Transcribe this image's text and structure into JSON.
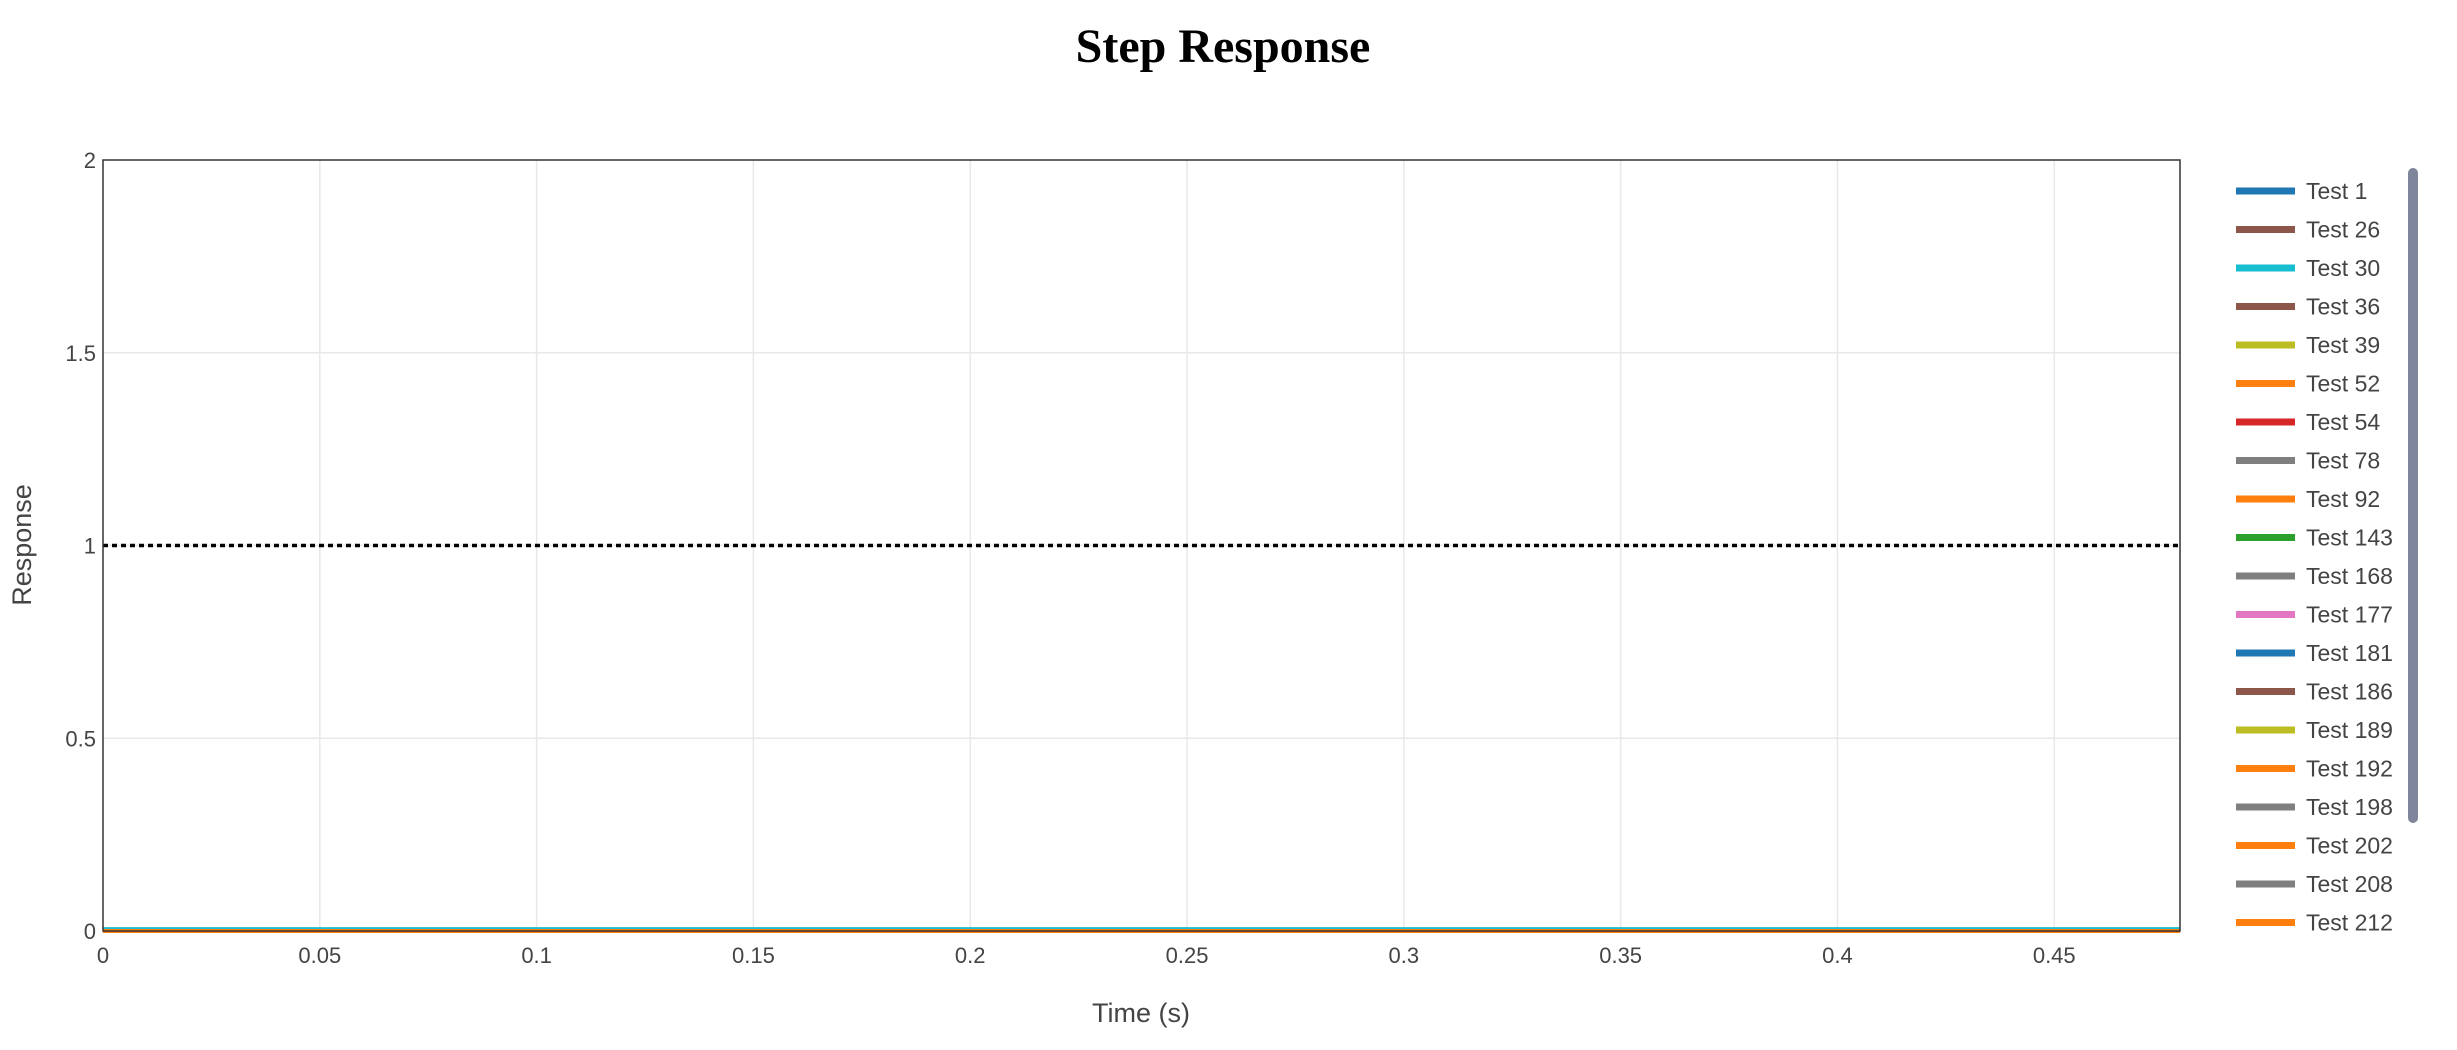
{
  "chart_data": {
    "type": "line",
    "title": "Step Response",
    "xlabel": "Time (s)",
    "ylabel": "Response",
    "xlim": [
      0,
      0.479
    ],
    "ylim": [
      0,
      2
    ],
    "x_ticks": [
      0,
      0.05,
      0.1,
      0.15,
      0.2,
      0.25,
      0.3,
      0.35,
      0.4,
      0.45
    ],
    "x_tick_labels": [
      "0",
      "0.05",
      "0.1",
      "0.15",
      "0.2",
      "0.25",
      "0.3",
      "0.35",
      "0.4",
      "0.45"
    ],
    "y_ticks": [
      0,
      0.5,
      1,
      1.5,
      2
    ],
    "y_tick_labels": [
      "0",
      "0.5",
      "1",
      "1.5",
      "2"
    ],
    "grid": true,
    "legend_position": "right",
    "reference_line": {
      "y": 1,
      "style": "dotted",
      "color": "#000000"
    },
    "series": [
      {
        "name": "Test 1",
        "color": "#1f77b4",
        "x": [
          0,
          0.479
        ],
        "y": [
          0,
          0
        ]
      },
      {
        "name": "Test 26",
        "color": "#8c564b",
        "x": [
          0,
          0.479
        ],
        "y": [
          0,
          0
        ]
      },
      {
        "name": "Test 30",
        "color": "#17becf",
        "x": [
          0,
          0.479
        ],
        "y": [
          0.005,
          0.005
        ]
      },
      {
        "name": "Test 36",
        "color": "#8c564b",
        "x": [
          0,
          0.479
        ],
        "y": [
          0,
          0
        ]
      },
      {
        "name": "Test 39",
        "color": "#bcbd22",
        "x": [
          0,
          0.479
        ],
        "y": [
          0,
          0
        ]
      },
      {
        "name": "Test 52",
        "color": "#ff7f0e",
        "x": [
          0,
          0.479
        ],
        "y": [
          0,
          0
        ]
      },
      {
        "name": "Test 54",
        "color": "#d62728",
        "x": [
          0,
          0.479
        ],
        "y": [
          0,
          0
        ]
      },
      {
        "name": "Test 78",
        "color": "#7f7f7f",
        "x": [
          0,
          0.479
        ],
        "y": [
          0,
          0
        ]
      },
      {
        "name": "Test 92",
        "color": "#ff7f0e",
        "x": [
          0,
          0.479
        ],
        "y": [
          0,
          0
        ]
      },
      {
        "name": "Test 143",
        "color": "#2ca02c",
        "x": [
          0,
          0.479
        ],
        "y": [
          0,
          0
        ]
      },
      {
        "name": "Test 168",
        "color": "#7f7f7f",
        "x": [
          0,
          0.479
        ],
        "y": [
          0,
          0
        ]
      },
      {
        "name": "Test 177",
        "color": "#e377c2",
        "x": [
          0,
          0.479
        ],
        "y": [
          0,
          0
        ]
      },
      {
        "name": "Test 181",
        "color": "#1f77b4",
        "x": [
          0,
          0.479
        ],
        "y": [
          0,
          0
        ]
      },
      {
        "name": "Test 186",
        "color": "#8c564b",
        "x": [
          0,
          0.479
        ],
        "y": [
          0,
          0
        ]
      },
      {
        "name": "Test 189",
        "color": "#bcbd22",
        "x": [
          0,
          0.479
        ],
        "y": [
          0,
          0
        ]
      },
      {
        "name": "Test 192",
        "color": "#ff7f0e",
        "x": [
          0,
          0.479
        ],
        "y": [
          0,
          0
        ]
      },
      {
        "name": "Test 198",
        "color": "#7f7f7f",
        "x": [
          0,
          0.479
        ],
        "y": [
          0,
          0
        ]
      },
      {
        "name": "Test 202",
        "color": "#ff7f0e",
        "x": [
          0,
          0.479
        ],
        "y": [
          0,
          0
        ]
      },
      {
        "name": "Test 208",
        "color": "#7f7f7f",
        "x": [
          0,
          0.479
        ],
        "y": [
          0,
          0
        ]
      },
      {
        "name": "Test 212",
        "color": "#ff7f0e",
        "x": [
          0,
          0.479
        ],
        "y": [
          0,
          0
        ]
      }
    ]
  }
}
